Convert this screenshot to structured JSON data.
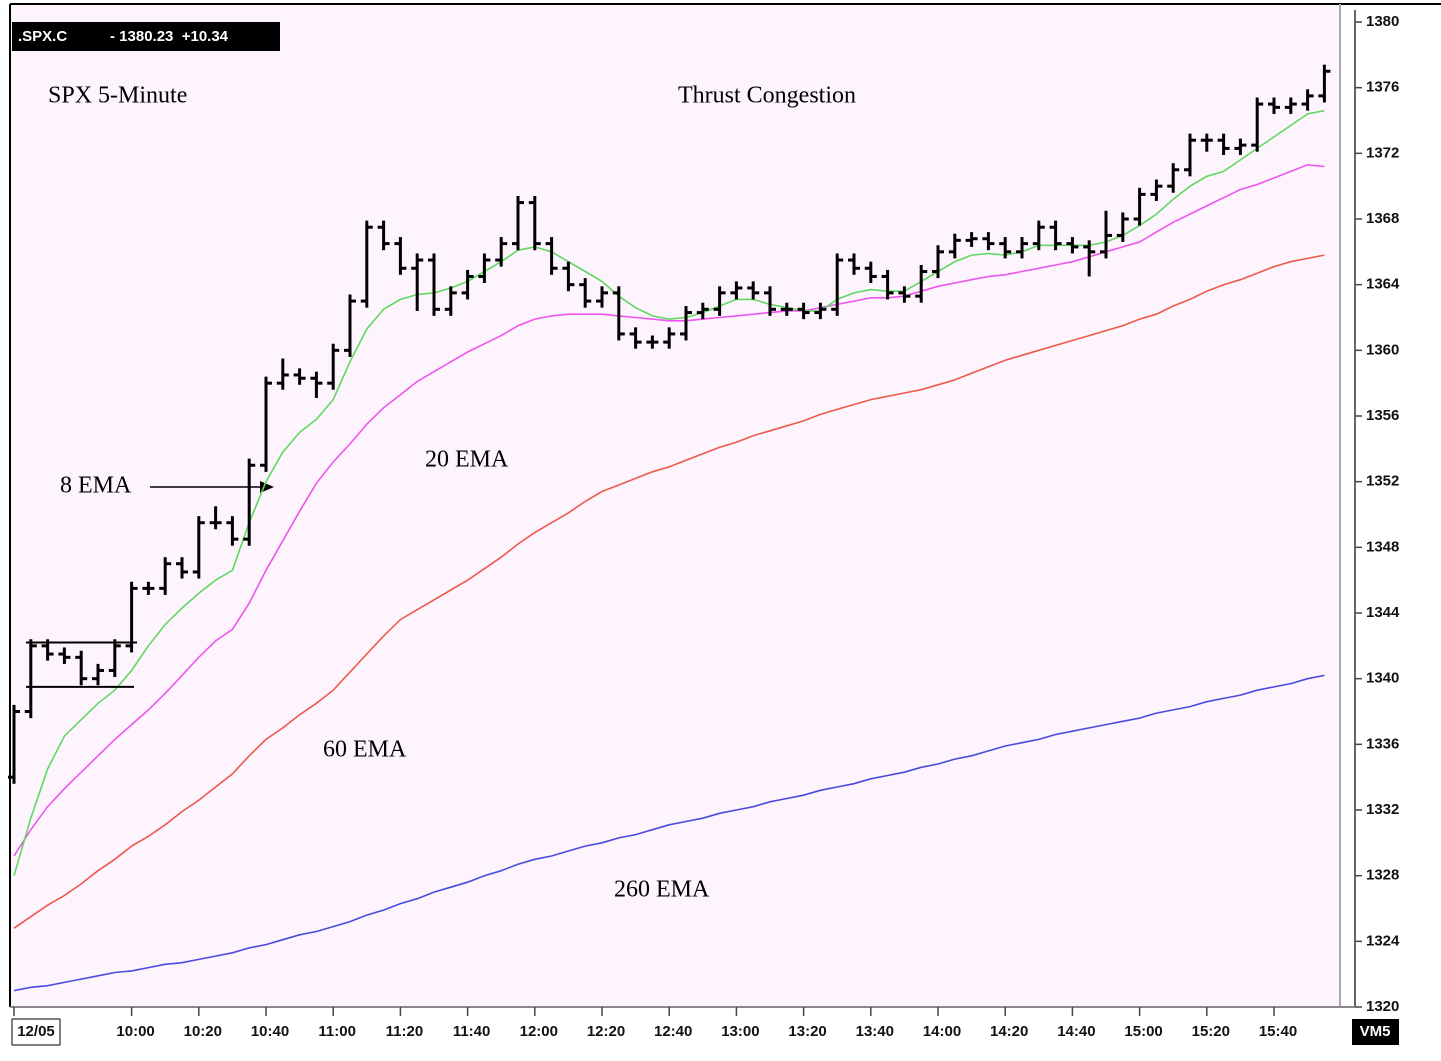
{
  "chart_data": {
    "type": "ohlc",
    "header": {
      "symbol": ".SPX.C",
      "quote": "- 1380.23  +10.34"
    },
    "title": "SPX  5-Minute",
    "subtitle": "Thrust Congestion",
    "corner_label": "VM5",
    "color": "#000000",
    "categories": [
      "12/05",
      null,
      null,
      null,
      null,
      null,
      null,
      "10:00",
      null,
      null,
      null,
      "10:20",
      null,
      null,
      null,
      "10:40",
      null,
      null,
      null,
      "11:00",
      null,
      null,
      null,
      "11:20",
      null,
      null,
      null,
      "11:40",
      null,
      null,
      null,
      "12:00",
      null,
      null,
      null,
      "12:20",
      null,
      null,
      null,
      "12:40",
      null,
      null,
      null,
      "13:00",
      null,
      null,
      null,
      "13:20",
      null,
      null,
      null,
      "13:40",
      null,
      null,
      null,
      "14:00",
      null,
      null,
      null,
      "14:20",
      null,
      null,
      null,
      "14:40",
      null,
      null,
      null,
      "15:00",
      null,
      null,
      null,
      "15:20",
      null,
      null,
      null,
      "15:40",
      null,
      null,
      null
    ],
    "open": [
      1334,
      1338,
      1342,
      1341.5,
      1341.3,
      1340,
      1340.5,
      1342,
      1345.5,
      1345.5,
      1347,
      1346.5,
      1349.5,
      1349.5,
      1348.5,
      1353,
      1358,
      1358.5,
      1358.3,
      1358,
      1360,
      1363,
      1367.5,
      1366.5,
      1365,
      1365.5,
      1362.5,
      1363.5,
      1364.5,
      1365.5,
      1366.5,
      1369,
      1366.5,
      1365,
      1364,
      1363,
      1363.5,
      1361,
      1360.5,
      1360.5,
      1361,
      1362.3,
      1362.5,
      1363.5,
      1363.8,
      1363.5,
      1362.5,
      1362.5,
      1362.3,
      1362.5,
      1365.5,
      1365,
      1364.5,
      1363.5,
      1363.3,
      1364.8,
      1366,
      1366.7,
      1366.8,
      1366.5,
      1366,
      1366.5,
      1367.5,
      1366.5,
      1366.3,
      1366,
      1367,
      1368,
      1369.5,
      1370,
      1371,
      1372.8,
      1372.8,
      1372.3,
      1372.5,
      1375,
      1374.8,
      1375,
      1375.5
    ],
    "high": [
      1338.4,
      1342.4,
      1342.4,
      1341.9,
      1341.7,
      1340.9,
      1342.4,
      1345.9,
      1345.9,
      1347.4,
      1347.4,
      1349.9,
      1350.5,
      1349.9,
      1353.4,
      1358.4,
      1359.5,
      1358.9,
      1358.7,
      1360.4,
      1363.4,
      1367.9,
      1367.9,
      1366.9,
      1365.9,
      1365.9,
      1363.9,
      1364.9,
      1365.9,
      1366.9,
      1369.4,
      1369.4,
      1366.9,
      1365.4,
      1364.4,
      1363.9,
      1363.9,
      1361.4,
      1360.9,
      1361.4,
      1362.7,
      1362.9,
      1363.9,
      1364.2,
      1364.2,
      1363.9,
      1362.9,
      1362.9,
      1362.9,
      1365.9,
      1365.9,
      1365.4,
      1364.9,
      1363.9,
      1365.2,
      1366.4,
      1367.1,
      1367.2,
      1367.2,
      1366.9,
      1366.9,
      1367.9,
      1367.9,
      1366.9,
      1366.7,
      1368.5,
      1368.4,
      1369.9,
      1370.4,
      1371.4,
      1373.2,
      1373.2,
      1373.2,
      1372.9,
      1375.4,
      1375.4,
      1375.4,
      1375.9,
      1377.4
    ],
    "low": [
      1333.6,
      1337.6,
      1341.1,
      1340.9,
      1339.6,
      1339.6,
      1340.1,
      1341.6,
      1345.1,
      1345.1,
      1346.1,
      1346.1,
      1349.1,
      1348.1,
      1348.1,
      1352.6,
      1357.6,
      1357.9,
      1357.1,
      1357.6,
      1359.6,
      1362.6,
      1366.1,
      1364.6,
      1362.4,
      1362.1,
      1362.1,
      1363.1,
      1364.1,
      1365.1,
      1366.1,
      1366.1,
      1364.6,
      1363.6,
      1362.6,
      1362.6,
      1360.6,
      1360.1,
      1360.1,
      1360.1,
      1360.6,
      1361.9,
      1362.1,
      1363.1,
      1363.1,
      1362.1,
      1362.1,
      1361.9,
      1361.9,
      1362.1,
      1364.6,
      1364.1,
      1363.1,
      1362.9,
      1362.9,
      1364.4,
      1365.6,
      1366.3,
      1366.1,
      1365.6,
      1365.6,
      1366.1,
      1366.1,
      1365.9,
      1364.5,
      1365.6,
      1366.6,
      1367.6,
      1369.1,
      1369.6,
      1370.6,
      1372.1,
      1371.9,
      1371.9,
      1372.1,
      1374.4,
      1374.4,
      1374.6,
      1375.1
    ],
    "close": [
      1338,
      1342,
      1341.5,
      1341.3,
      1340,
      1340.5,
      1342,
      1345.5,
      1345.5,
      1347,
      1346.5,
      1349.5,
      1349.5,
      1348.5,
      1353,
      1358,
      1358.5,
      1358.3,
      1358,
      1360,
      1363,
      1367.5,
      1366.5,
      1365,
      1365.5,
      1362.5,
      1363.5,
      1364.5,
      1365.5,
      1366.5,
      1369,
      1366.5,
      1365,
      1364,
      1363,
      1363.5,
      1361,
      1360.5,
      1360.5,
      1361,
      1362.3,
      1362.5,
      1363.5,
      1363.8,
      1363.5,
      1362.5,
      1362.5,
      1362.3,
      1362.5,
      1365.5,
      1365,
      1364.5,
      1363.5,
      1363.3,
      1364.8,
      1366,
      1366.7,
      1366.8,
      1366.5,
      1366,
      1366.5,
      1367.5,
      1366.5,
      1366.3,
      1366,
      1367,
      1368,
      1369.5,
      1370,
      1371,
      1372.8,
      1372.8,
      1372.3,
      1372.5,
      1375,
      1374.8,
      1375,
      1375.5,
      1377
    ],
    "series": [
      {
        "name": "260 EMA",
        "color": "#4a4adf",
        "values": [
          1321,
          1321.2,
          1321.3,
          1321.5,
          1321.7,
          1321.9,
          1322.1,
          1322.2,
          1322.4,
          1322.6,
          1322.7,
          1322.9,
          1323.1,
          1323.3,
          1323.6,
          1323.8,
          1324.1,
          1324.4,
          1324.6,
          1324.9,
          1325.2,
          1325.6,
          1325.9,
          1326.3,
          1326.6,
          1327,
          1327.3,
          1327.6,
          1328,
          1328.3,
          1328.7,
          1329,
          1329.2,
          1329.5,
          1329.8,
          1330,
          1330.3,
          1330.5,
          1330.8,
          1331.1,
          1331.3,
          1331.5,
          1331.8,
          1332,
          1332.2,
          1332.5,
          1332.7,
          1332.9,
          1333.2,
          1333.4,
          1333.6,
          1333.9,
          1334.1,
          1334.3,
          1334.6,
          1334.8,
          1335.1,
          1335.3,
          1335.6,
          1335.9,
          1336.1,
          1336.3,
          1336.6,
          1336.8,
          1337,
          1337.2,
          1337.4,
          1337.6,
          1337.9,
          1338.1,
          1338.3,
          1338.6,
          1338.8,
          1339,
          1339.3,
          1339.5,
          1339.7,
          1340,
          1340.2
        ]
      },
      {
        "name": "60 EMA",
        "color": "#ee5a4a",
        "values": [
          1324.8,
          1325.5,
          1326.2,
          1326.8,
          1327.5,
          1328.3,
          1329,
          1329.8,
          1330.4,
          1331.1,
          1331.9,
          1332.6,
          1333.4,
          1334.2,
          1335.3,
          1336.3,
          1337,
          1337.8,
          1338.5,
          1339.3,
          1340.4,
          1341.5,
          1342.6,
          1343.6,
          1344.2,
          1344.8,
          1345.4,
          1346,
          1346.7,
          1347.4,
          1348.2,
          1348.9,
          1349.5,
          1350.1,
          1350.8,
          1351.4,
          1351.8,
          1352.2,
          1352.6,
          1352.9,
          1353.3,
          1353.7,
          1354.1,
          1354.4,
          1354.8,
          1355.1,
          1355.4,
          1355.7,
          1356.1,
          1356.4,
          1356.7,
          1357,
          1357.2,
          1357.4,
          1357.6,
          1357.9,
          1358.2,
          1358.6,
          1359,
          1359.4,
          1359.7,
          1360,
          1360.3,
          1360.6,
          1360.9,
          1361.2,
          1361.5,
          1361.9,
          1362.2,
          1362.7,
          1363.1,
          1363.6,
          1364,
          1364.3,
          1364.7,
          1365.1,
          1365.4,
          1365.6,
          1365.8
        ]
      },
      {
        "name": "20 EMA",
        "color": "#ee55ee",
        "values": [
          1329.2,
          1330.8,
          1332.2,
          1333.3,
          1334.3,
          1335.3,
          1336.3,
          1337.2,
          1338.1,
          1339.1,
          1340.2,
          1341.3,
          1342.3,
          1343,
          1344.6,
          1346.6,
          1348.4,
          1350.2,
          1351.9,
          1353.2,
          1354.3,
          1355.5,
          1356.5,
          1357.3,
          1358.1,
          1358.7,
          1359.3,
          1359.9,
          1360.4,
          1360.9,
          1361.5,
          1361.9,
          1362.1,
          1362.2,
          1362.2,
          1362.2,
          1362.1,
          1362,
          1361.9,
          1361.8,
          1361.8,
          1361.9,
          1362,
          1362.1,
          1362.2,
          1362.3,
          1362.4,
          1362.4,
          1362.6,
          1362.8,
          1363,
          1363.2,
          1363.2,
          1363.3,
          1363.6,
          1363.9,
          1364.1,
          1364.3,
          1364.5,
          1364.6,
          1364.8,
          1365,
          1365.2,
          1365.4,
          1365.7,
          1366,
          1366.3,
          1366.6,
          1367.2,
          1367.8,
          1368.3,
          1368.8,
          1369.3,
          1369.8,
          1370.1,
          1370.5,
          1370.9,
          1371.3,
          1371.2
        ]
      },
      {
        "name": "8 EMA",
        "color": "#5fd95f",
        "values": [
          1328,
          1331.5,
          1334.5,
          1336.5,
          1337.5,
          1338.5,
          1339.3,
          1340.5,
          1342,
          1343.3,
          1344.3,
          1345.2,
          1346,
          1346.6,
          1349.5,
          1352,
          1353.8,
          1355,
          1355.8,
          1357,
          1359.3,
          1361.3,
          1362.5,
          1363.1,
          1363.4,
          1363.5,
          1363.8,
          1364.2,
          1364.8,
          1365.4,
          1366.1,
          1366.3,
          1366,
          1365.4,
          1364.8,
          1364.2,
          1363.3,
          1362.6,
          1362.1,
          1361.9,
          1362,
          1362.3,
          1362.7,
          1363.1,
          1363.1,
          1362.8,
          1362.6,
          1362.4,
          1362.4,
          1363.1,
          1363.5,
          1363.7,
          1363.6,
          1363.6,
          1364.2,
          1364.8,
          1365.4,
          1365.8,
          1365.9,
          1365.8,
          1366,
          1366.4,
          1366.4,
          1366.4,
          1366.4,
          1366.6,
          1367,
          1367.6,
          1368.3,
          1369.2,
          1370,
          1370.6,
          1370.9,
          1371.6,
          1372.3,
          1373,
          1373.7,
          1374.4,
          1374.6
        ]
      }
    ],
    "congestion_box": {
      "high": 1342.2,
      "low": 1339.5
    },
    "ylim": [
      1320,
      1380
    ],
    "yticks": [
      1320,
      1324,
      1328,
      1332,
      1336,
      1340,
      1344,
      1348,
      1352,
      1356,
      1360,
      1364,
      1368,
      1372,
      1376,
      1380
    ],
    "grid": false
  }
}
